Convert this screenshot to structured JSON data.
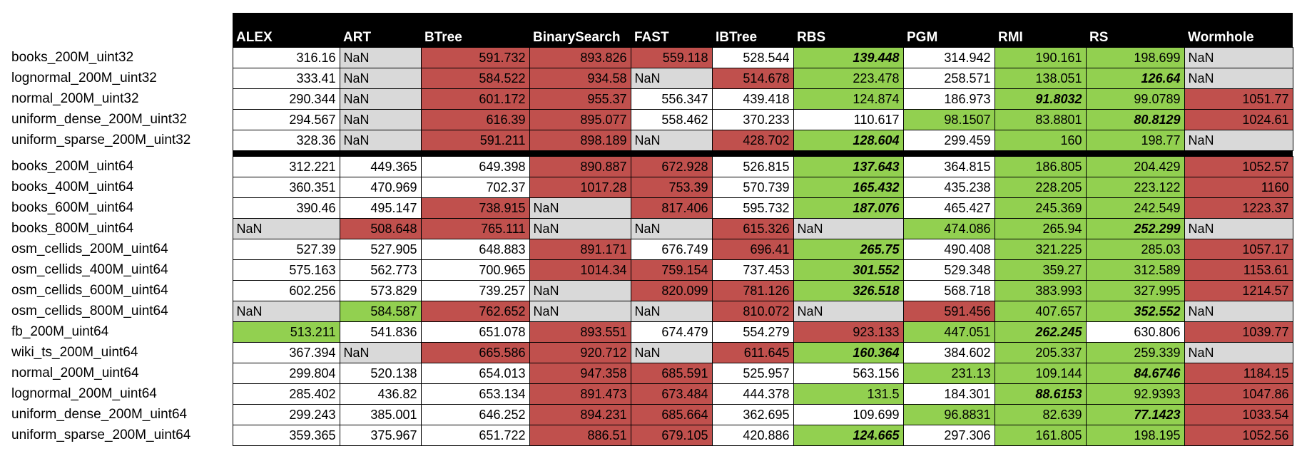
{
  "table": {
    "columns": [
      "ALEX",
      "ART",
      "BTree",
      "BinarySearch",
      "FAST",
      "IBTree",
      "RBS",
      "PGM",
      "RMI",
      "RS",
      "Wormhole"
    ],
    "colors": {
      "red": "#c0504d",
      "green": "#92d050",
      "gray": "#d9d9d9",
      "white": "#ffffff",
      "header": "#000000"
    },
    "group_separator_after_row": 4,
    "rows": [
      {
        "label": "books_200M_uint32",
        "cells": [
          {
            "v": "316.16",
            "c": "white"
          },
          {
            "v": "NaN",
            "c": "gray"
          },
          {
            "v": "591.732",
            "c": "red"
          },
          {
            "v": "893.826",
            "c": "red"
          },
          {
            "v": "559.118",
            "c": "red"
          },
          {
            "v": "528.544",
            "c": "white"
          },
          {
            "v": "139.448",
            "c": "green",
            "b": true
          },
          {
            "v": "314.942",
            "c": "white"
          },
          {
            "v": "190.161",
            "c": "green"
          },
          {
            "v": "198.699",
            "c": "green"
          },
          {
            "v": "NaN",
            "c": "gray"
          }
        ]
      },
      {
        "label": "lognormal_200M_uint32",
        "cells": [
          {
            "v": "333.41",
            "c": "white"
          },
          {
            "v": "NaN",
            "c": "gray"
          },
          {
            "v": "584.522",
            "c": "red"
          },
          {
            "v": "934.58",
            "c": "red"
          },
          {
            "v": "NaN",
            "c": "gray"
          },
          {
            "v": "514.678",
            "c": "red"
          },
          {
            "v": "223.478",
            "c": "green"
          },
          {
            "v": "258.571",
            "c": "white"
          },
          {
            "v": "138.051",
            "c": "green"
          },
          {
            "v": "126.64",
            "c": "green",
            "b": true
          },
          {
            "v": "NaN",
            "c": "gray"
          }
        ]
      },
      {
        "label": "normal_200M_uint32",
        "cells": [
          {
            "v": "290.344",
            "c": "white"
          },
          {
            "v": "NaN",
            "c": "gray"
          },
          {
            "v": "601.172",
            "c": "red"
          },
          {
            "v": "955.37",
            "c": "red"
          },
          {
            "v": "556.347",
            "c": "white"
          },
          {
            "v": "439.418",
            "c": "white"
          },
          {
            "v": "124.874",
            "c": "green"
          },
          {
            "v": "186.973",
            "c": "white"
          },
          {
            "v": "91.8032",
            "c": "green",
            "b": true
          },
          {
            "v": "99.0789",
            "c": "green"
          },
          {
            "v": "1051.77",
            "c": "red"
          }
        ]
      },
      {
        "label": "uniform_dense_200M_uint32",
        "cells": [
          {
            "v": "294.567",
            "c": "white"
          },
          {
            "v": "NaN",
            "c": "gray"
          },
          {
            "v": "616.39",
            "c": "red"
          },
          {
            "v": "895.077",
            "c": "red"
          },
          {
            "v": "558.462",
            "c": "white"
          },
          {
            "v": "370.233",
            "c": "white"
          },
          {
            "v": "110.617",
            "c": "white"
          },
          {
            "v": "98.1507",
            "c": "green"
          },
          {
            "v": "83.8801",
            "c": "green"
          },
          {
            "v": "80.8129",
            "c": "green",
            "b": true
          },
          {
            "v": "1024.61",
            "c": "red"
          }
        ]
      },
      {
        "label": "uniform_sparse_200M_uint32",
        "cells": [
          {
            "v": "328.36",
            "c": "white"
          },
          {
            "v": "NaN",
            "c": "gray"
          },
          {
            "v": "591.211",
            "c": "red"
          },
          {
            "v": "898.189",
            "c": "red"
          },
          {
            "v": "NaN",
            "c": "gray"
          },
          {
            "v": "428.702",
            "c": "red"
          },
          {
            "v": "128.604",
            "c": "green",
            "b": true
          },
          {
            "v": "299.459",
            "c": "white"
          },
          {
            "v": "160",
            "c": "green"
          },
          {
            "v": "198.77",
            "c": "green"
          },
          {
            "v": "NaN",
            "c": "gray"
          }
        ]
      },
      {
        "label": "books_200M_uint64",
        "cells": [
          {
            "v": "312.221",
            "c": "white"
          },
          {
            "v": "449.365",
            "c": "white"
          },
          {
            "v": "649.398",
            "c": "white"
          },
          {
            "v": "890.887",
            "c": "red"
          },
          {
            "v": "672.928",
            "c": "red"
          },
          {
            "v": "526.815",
            "c": "white"
          },
          {
            "v": "137.643",
            "c": "green",
            "b": true
          },
          {
            "v": "364.815",
            "c": "white"
          },
          {
            "v": "186.805",
            "c": "green"
          },
          {
            "v": "204.429",
            "c": "green"
          },
          {
            "v": "1052.57",
            "c": "red"
          }
        ]
      },
      {
        "label": "books_400M_uint64",
        "cells": [
          {
            "v": "360.351",
            "c": "white"
          },
          {
            "v": "470.969",
            "c": "white"
          },
          {
            "v": "702.37",
            "c": "white"
          },
          {
            "v": "1017.28",
            "c": "red"
          },
          {
            "v": "753.39",
            "c": "red"
          },
          {
            "v": "570.739",
            "c": "white"
          },
          {
            "v": "165.432",
            "c": "green",
            "b": true
          },
          {
            "v": "435.238",
            "c": "white"
          },
          {
            "v": "228.205",
            "c": "green"
          },
          {
            "v": "223.122",
            "c": "green"
          },
          {
            "v": "1160",
            "c": "red"
          }
        ]
      },
      {
        "label": "books_600M_uint64",
        "cells": [
          {
            "v": "390.46",
            "c": "white"
          },
          {
            "v": "495.147",
            "c": "white"
          },
          {
            "v": "738.915",
            "c": "red"
          },
          {
            "v": "NaN",
            "c": "gray"
          },
          {
            "v": "817.406",
            "c": "red"
          },
          {
            "v": "595.732",
            "c": "white"
          },
          {
            "v": "187.076",
            "c": "green",
            "b": true
          },
          {
            "v": "465.427",
            "c": "white"
          },
          {
            "v": "245.369",
            "c": "green"
          },
          {
            "v": "242.549",
            "c": "green"
          },
          {
            "v": "1223.37",
            "c": "red"
          }
        ]
      },
      {
        "label": "books_800M_uint64",
        "cells": [
          {
            "v": "NaN",
            "c": "gray"
          },
          {
            "v": "508.648",
            "c": "red"
          },
          {
            "v": "765.111",
            "c": "red"
          },
          {
            "v": "NaN",
            "c": "gray"
          },
          {
            "v": "NaN",
            "c": "gray"
          },
          {
            "v": "615.326",
            "c": "red"
          },
          {
            "v": "NaN",
            "c": "gray"
          },
          {
            "v": "474.086",
            "c": "green"
          },
          {
            "v": "265.94",
            "c": "green"
          },
          {
            "v": "252.299",
            "c": "green",
            "b": true
          },
          {
            "v": "NaN",
            "c": "gray"
          }
        ]
      },
      {
        "label": "osm_cellids_200M_uint64",
        "cells": [
          {
            "v": "527.39",
            "c": "white"
          },
          {
            "v": "527.905",
            "c": "white"
          },
          {
            "v": "648.883",
            "c": "white"
          },
          {
            "v": "891.171",
            "c": "red"
          },
          {
            "v": "676.749",
            "c": "white"
          },
          {
            "v": "696.41",
            "c": "red"
          },
          {
            "v": "265.75",
            "c": "green",
            "b": true
          },
          {
            "v": "490.408",
            "c": "white"
          },
          {
            "v": "321.225",
            "c": "green"
          },
          {
            "v": "285.03",
            "c": "green"
          },
          {
            "v": "1057.17",
            "c": "red"
          }
        ]
      },
      {
        "label": "osm_cellids_400M_uint64",
        "cells": [
          {
            "v": "575.163",
            "c": "white"
          },
          {
            "v": "562.773",
            "c": "white"
          },
          {
            "v": "700.965",
            "c": "white"
          },
          {
            "v": "1014.34",
            "c": "red"
          },
          {
            "v": "759.154",
            "c": "red"
          },
          {
            "v": "737.453",
            "c": "white"
          },
          {
            "v": "301.552",
            "c": "green",
            "b": true
          },
          {
            "v": "529.348",
            "c": "white"
          },
          {
            "v": "359.27",
            "c": "green"
          },
          {
            "v": "312.589",
            "c": "green"
          },
          {
            "v": "1153.61",
            "c": "red"
          }
        ]
      },
      {
        "label": "osm_cellids_600M_uint64",
        "cells": [
          {
            "v": "602.256",
            "c": "white"
          },
          {
            "v": "573.829",
            "c": "white"
          },
          {
            "v": "739.257",
            "c": "white"
          },
          {
            "v": "NaN",
            "c": "gray"
          },
          {
            "v": "820.099",
            "c": "red"
          },
          {
            "v": "781.126",
            "c": "red"
          },
          {
            "v": "326.518",
            "c": "green",
            "b": true
          },
          {
            "v": "568.718",
            "c": "white"
          },
          {
            "v": "383.993",
            "c": "green"
          },
          {
            "v": "327.995",
            "c": "green"
          },
          {
            "v": "1214.57",
            "c": "red"
          }
        ]
      },
      {
        "label": "osm_cellids_800M_uint64",
        "cells": [
          {
            "v": "NaN",
            "c": "gray"
          },
          {
            "v": "584.587",
            "c": "green"
          },
          {
            "v": "762.652",
            "c": "red"
          },
          {
            "v": "NaN",
            "c": "gray"
          },
          {
            "v": "NaN",
            "c": "gray"
          },
          {
            "v": "810.072",
            "c": "red"
          },
          {
            "v": "NaN",
            "c": "gray"
          },
          {
            "v": "591.456",
            "c": "red"
          },
          {
            "v": "407.657",
            "c": "green"
          },
          {
            "v": "352.552",
            "c": "green",
            "b": true
          },
          {
            "v": "NaN",
            "c": "gray"
          }
        ]
      },
      {
        "label": "fb_200M_uint64",
        "cells": [
          {
            "v": "513.211",
            "c": "green"
          },
          {
            "v": "541.836",
            "c": "white"
          },
          {
            "v": "651.078",
            "c": "white"
          },
          {
            "v": "893.551",
            "c": "red"
          },
          {
            "v": "674.479",
            "c": "white"
          },
          {
            "v": "554.279",
            "c": "white"
          },
          {
            "v": "923.133",
            "c": "red"
          },
          {
            "v": "447.051",
            "c": "green"
          },
          {
            "v": "262.245",
            "c": "green",
            "b": true
          },
          {
            "v": "630.806",
            "c": "white"
          },
          {
            "v": "1039.77",
            "c": "red"
          }
        ]
      },
      {
        "label": "wiki_ts_200M_uint64",
        "cells": [
          {
            "v": "367.394",
            "c": "white"
          },
          {
            "v": "NaN",
            "c": "gray"
          },
          {
            "v": "665.586",
            "c": "red"
          },
          {
            "v": "920.712",
            "c": "red"
          },
          {
            "v": "NaN",
            "c": "gray"
          },
          {
            "v": "611.645",
            "c": "red"
          },
          {
            "v": "160.364",
            "c": "green",
            "b": true
          },
          {
            "v": "384.602",
            "c": "white"
          },
          {
            "v": "205.337",
            "c": "green"
          },
          {
            "v": "259.339",
            "c": "green"
          },
          {
            "v": "NaN",
            "c": "gray"
          }
        ]
      },
      {
        "label": "normal_200M_uint64",
        "cells": [
          {
            "v": "299.804",
            "c": "white"
          },
          {
            "v": "520.138",
            "c": "white"
          },
          {
            "v": "654.013",
            "c": "white"
          },
          {
            "v": "947.358",
            "c": "red"
          },
          {
            "v": "685.591",
            "c": "red"
          },
          {
            "v": "525.957",
            "c": "white"
          },
          {
            "v": "563.156",
            "c": "white"
          },
          {
            "v": "231.13",
            "c": "green"
          },
          {
            "v": "109.144",
            "c": "green"
          },
          {
            "v": "84.6746",
            "c": "green",
            "b": true
          },
          {
            "v": "1184.15",
            "c": "red"
          }
        ]
      },
      {
        "label": "lognormal_200M_uint64",
        "cells": [
          {
            "v": "285.402",
            "c": "white"
          },
          {
            "v": "436.82",
            "c": "white"
          },
          {
            "v": "653.134",
            "c": "white"
          },
          {
            "v": "891.473",
            "c": "red"
          },
          {
            "v": "673.484",
            "c": "red"
          },
          {
            "v": "444.378",
            "c": "white"
          },
          {
            "v": "131.5",
            "c": "green"
          },
          {
            "v": "184.301",
            "c": "white"
          },
          {
            "v": "88.6153",
            "c": "green",
            "b": true
          },
          {
            "v": "92.9393",
            "c": "green"
          },
          {
            "v": "1047.86",
            "c": "red"
          }
        ]
      },
      {
        "label": "uniform_dense_200M_uint64",
        "cells": [
          {
            "v": "299.243",
            "c": "white"
          },
          {
            "v": "385.001",
            "c": "white"
          },
          {
            "v": "646.252",
            "c": "white"
          },
          {
            "v": "894.231",
            "c": "red"
          },
          {
            "v": "685.664",
            "c": "red"
          },
          {
            "v": "362.695",
            "c": "white"
          },
          {
            "v": "109.699",
            "c": "white"
          },
          {
            "v": "96.8831",
            "c": "green"
          },
          {
            "v": "82.639",
            "c": "green"
          },
          {
            "v": "77.1423",
            "c": "green",
            "b": true
          },
          {
            "v": "1033.54",
            "c": "red"
          }
        ]
      },
      {
        "label": "uniform_sparse_200M_uint64",
        "cells": [
          {
            "v": "359.365",
            "c": "white"
          },
          {
            "v": "375.967",
            "c": "white"
          },
          {
            "v": "651.722",
            "c": "white"
          },
          {
            "v": "886.51",
            "c": "red"
          },
          {
            "v": "679.105",
            "c": "red"
          },
          {
            "v": "420.886",
            "c": "white"
          },
          {
            "v": "124.665",
            "c": "green",
            "b": true
          },
          {
            "v": "297.306",
            "c": "white"
          },
          {
            "v": "161.805",
            "c": "green"
          },
          {
            "v": "198.195",
            "c": "green"
          },
          {
            "v": "1052.56",
            "c": "red"
          }
        ]
      }
    ]
  }
}
